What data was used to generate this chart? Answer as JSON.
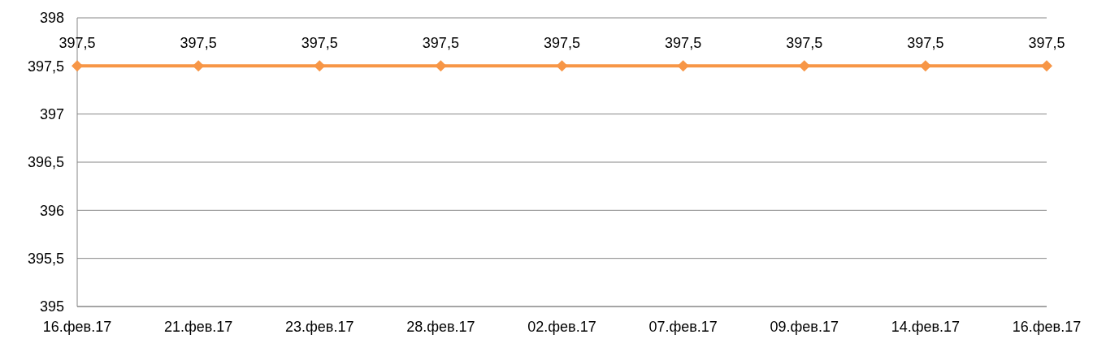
{
  "chart_data": {
    "type": "line",
    "categories": [
      "16.фев.17",
      "21.фев.17",
      "23.фев.17",
      "28.фев.17",
      "02.фев.17",
      "07.фев.17",
      "09.фев.17",
      "14.фев.17",
      "16.фев.17"
    ],
    "values": [
      397.5,
      397.5,
      397.5,
      397.5,
      397.5,
      397.5,
      397.5,
      397.5,
      397.5
    ],
    "value_labels": [
      "397,5",
      "397,5",
      "397,5",
      "397,5",
      "397,5",
      "397,5",
      "397,5",
      "397,5",
      "397,5"
    ],
    "color": "#f79646",
    "ylim": [
      395,
      398
    ],
    "yticks": [
      395,
      {
        "value": 395.5,
        "label": "395,5"
      },
      396,
      {
        "value": 396.5,
        "label": "396,5"
      },
      397,
      {
        "value": 397.5,
        "label": "397,5"
      },
      398
    ],
    "grid": "y",
    "marker": "diamond",
    "line_style": "solid"
  }
}
